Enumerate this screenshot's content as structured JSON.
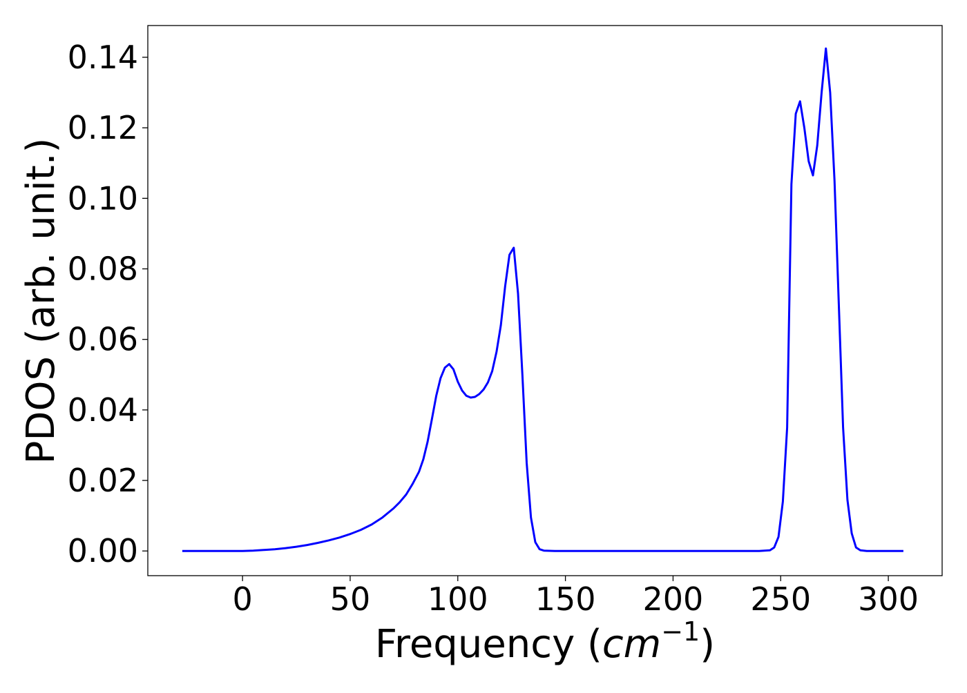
{
  "chart_data": {
    "type": "line",
    "title": "",
    "xlabel_prefix": "Frequency (",
    "xlabel_unit_base": "cm",
    "xlabel_unit_exp": "−1",
    "xlabel_suffix": ")",
    "ylabel": "PDOS (arb. unit.)",
    "xlim": [
      -44,
      325
    ],
    "ylim": [
      -0.007,
      0.149
    ],
    "xticks": [
      0,
      50,
      100,
      150,
      200,
      250,
      300
    ],
    "xtick_labels": [
      "0",
      "50",
      "100",
      "150",
      "200",
      "250",
      "300"
    ],
    "yticks": [
      0.0,
      0.02,
      0.04,
      0.06,
      0.08,
      0.1,
      0.12,
      0.14
    ],
    "ytick_labels": [
      "0.00",
      "0.02",
      "0.04",
      "0.06",
      "0.08",
      "0.10",
      "0.12",
      "0.14"
    ],
    "grid": false,
    "legend": "none",
    "series": [
      {
        "color": "#0000ff",
        "x": [
          -28,
          -20,
          -10,
          0,
          5,
          10,
          15,
          20,
          25,
          30,
          35,
          40,
          45,
          50,
          55,
          60,
          65,
          70,
          73,
          76,
          79,
          82,
          84,
          86,
          88,
          90,
          92,
          94,
          96,
          98,
          100,
          102,
          104,
          106,
          108,
          110,
          112,
          114,
          116,
          118,
          120,
          122,
          124,
          126,
          128,
          130,
          132,
          134,
          136,
          138,
          140,
          145,
          150,
          200,
          240,
          245,
          247,
          249,
          251,
          253,
          255,
          257,
          259,
          261,
          263,
          265,
          267,
          269,
          271,
          273,
          275,
          277,
          279,
          281,
          283,
          285,
          287,
          290,
          300,
          307
        ],
        "y": [
          0.0,
          0.0,
          0.0,
          0.0,
          0.0001,
          0.0003,
          0.0005,
          0.0008,
          0.0012,
          0.0017,
          0.0023,
          0.003,
          0.0038,
          0.0048,
          0.006,
          0.0075,
          0.0095,
          0.012,
          0.0138,
          0.016,
          0.019,
          0.0225,
          0.026,
          0.031,
          0.0375,
          0.044,
          0.049,
          0.052,
          0.053,
          0.0515,
          0.048,
          0.0455,
          0.044,
          0.0435,
          0.0437,
          0.0445,
          0.0458,
          0.0478,
          0.051,
          0.0565,
          0.064,
          0.075,
          0.084,
          0.086,
          0.073,
          0.05,
          0.025,
          0.0095,
          0.0025,
          0.0005,
          0.0001,
          0.0,
          0.0,
          0.0,
          0.0,
          0.0002,
          0.001,
          0.004,
          0.014,
          0.035,
          0.104,
          0.124,
          0.1275,
          0.12,
          0.1105,
          0.1065,
          0.115,
          0.13,
          0.1425,
          0.13,
          0.105,
          0.07,
          0.035,
          0.0145,
          0.005,
          0.001,
          0.0002,
          0.0,
          0.0,
          0.0
        ]
      }
    ]
  }
}
